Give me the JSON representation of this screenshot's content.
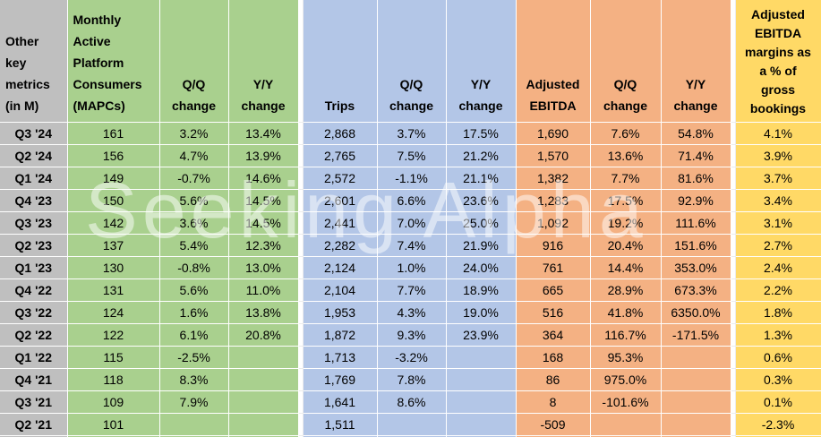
{
  "watermark": "Seeking Alpha",
  "colors": {
    "label_column": "#BFBFBF",
    "mapcs_group": "#A9D08E",
    "trips_group": "#B3C6E7",
    "ebitda_group": "#F4B183",
    "margin_column": "#FFD966",
    "text": "#000000"
  },
  "chart_data": {
    "type": "table",
    "title": "Other key metrics (in M)",
    "headers": {
      "quarter": "Other key metrics (in M)",
      "mapcs": "Monthly Active Platform Consumers (MAPCs)",
      "mapcs_qq": "Q/Q change",
      "mapcs_yy": "Y/Y change",
      "trips": "Trips",
      "trips_qq": "Q/Q change",
      "trips_yy": "Y/Y change",
      "ebitda": "Adjusted EBITDA",
      "ebitda_qq": "Q/Q change",
      "ebitda_yy": "Y/Y change",
      "margin": "Adjusted EBITDA margins as a % of gross bookings"
    },
    "rows": [
      {
        "quarter": "Q3 '24",
        "mapcs": "161",
        "mapcs_qq": "3.2%",
        "mapcs_yy": "13.4%",
        "trips": "2,868",
        "trips_qq": "3.7%",
        "trips_yy": "17.5%",
        "ebitda": "1,690",
        "ebitda_qq": "7.6%",
        "ebitda_yy": "54.8%",
        "margin": "4.1%"
      },
      {
        "quarter": "Q2 '24",
        "mapcs": "156",
        "mapcs_qq": "4.7%",
        "mapcs_yy": "13.9%",
        "trips": "2,765",
        "trips_qq": "7.5%",
        "trips_yy": "21.2%",
        "ebitda": "1,570",
        "ebitda_qq": "13.6%",
        "ebitda_yy": "71.4%",
        "margin": "3.9%"
      },
      {
        "quarter": "Q1 '24",
        "mapcs": "149",
        "mapcs_qq": "-0.7%",
        "mapcs_yy": "14.6%",
        "trips": "2,572",
        "trips_qq": "-1.1%",
        "trips_yy": "21.1%",
        "ebitda": "1,382",
        "ebitda_qq": "7.7%",
        "ebitda_yy": "81.6%",
        "margin": "3.7%"
      },
      {
        "quarter": "Q4 '23",
        "mapcs": "150",
        "mapcs_qq": "5.6%",
        "mapcs_yy": "14.5%",
        "trips": "2,601",
        "trips_qq": "6.6%",
        "trips_yy": "23.6%",
        "ebitda": "1,283",
        "ebitda_qq": "17.5%",
        "ebitda_yy": "92.9%",
        "margin": "3.4%"
      },
      {
        "quarter": "Q3 '23",
        "mapcs": "142",
        "mapcs_qq": "3.6%",
        "mapcs_yy": "14.5%",
        "trips": "2,441",
        "trips_qq": "7.0%",
        "trips_yy": "25.0%",
        "ebitda": "1,092",
        "ebitda_qq": "19.2%",
        "ebitda_yy": "111.6%",
        "margin": "3.1%"
      },
      {
        "quarter": "Q2 '23",
        "mapcs": "137",
        "mapcs_qq": "5.4%",
        "mapcs_yy": "12.3%",
        "trips": "2,282",
        "trips_qq": "7.4%",
        "trips_yy": "21.9%",
        "ebitda": "916",
        "ebitda_qq": "20.4%",
        "ebitda_yy": "151.6%",
        "margin": "2.7%"
      },
      {
        "quarter": "Q1 '23",
        "mapcs": "130",
        "mapcs_qq": "-0.8%",
        "mapcs_yy": "13.0%",
        "trips": "2,124",
        "trips_qq": "1.0%",
        "trips_yy": "24.0%",
        "ebitda": "761",
        "ebitda_qq": "14.4%",
        "ebitda_yy": "353.0%",
        "margin": "2.4%"
      },
      {
        "quarter": "Q4 '22",
        "mapcs": "131",
        "mapcs_qq": "5.6%",
        "mapcs_yy": "11.0%",
        "trips": "2,104",
        "trips_qq": "7.7%",
        "trips_yy": "18.9%",
        "ebitda": "665",
        "ebitda_qq": "28.9%",
        "ebitda_yy": "673.3%",
        "margin": "2.2%"
      },
      {
        "quarter": "Q3 '22",
        "mapcs": "124",
        "mapcs_qq": "1.6%",
        "mapcs_yy": "13.8%",
        "trips": "1,953",
        "trips_qq": "4.3%",
        "trips_yy": "19.0%",
        "ebitda": "516",
        "ebitda_qq": "41.8%",
        "ebitda_yy": "6350.0%",
        "margin": "1.8%"
      },
      {
        "quarter": "Q2 '22",
        "mapcs": "122",
        "mapcs_qq": "6.1%",
        "mapcs_yy": "20.8%",
        "trips": "1,872",
        "trips_qq": "9.3%",
        "trips_yy": "23.9%",
        "ebitda": "364",
        "ebitda_qq": "116.7%",
        "ebitda_yy": "-171.5%",
        "margin": "1.3%"
      },
      {
        "quarter": "Q1 '22",
        "mapcs": "115",
        "mapcs_qq": "-2.5%",
        "mapcs_yy": "",
        "trips": "1,713",
        "trips_qq": "-3.2%",
        "trips_yy": "",
        "ebitda": "168",
        "ebitda_qq": "95.3%",
        "ebitda_yy": "",
        "margin": "0.6%"
      },
      {
        "quarter": "Q4 '21",
        "mapcs": "118",
        "mapcs_qq": "8.3%",
        "mapcs_yy": "",
        "trips": "1,769",
        "trips_qq": "7.8%",
        "trips_yy": "",
        "ebitda": "86",
        "ebitda_qq": "975.0%",
        "ebitda_yy": "",
        "margin": "0.3%"
      },
      {
        "quarter": "Q3 '21",
        "mapcs": "109",
        "mapcs_qq": "7.9%",
        "mapcs_yy": "",
        "trips": "1,641",
        "trips_qq": "8.6%",
        "trips_yy": "",
        "ebitda": "8",
        "ebitda_qq": "-101.6%",
        "ebitda_yy": "",
        "margin": "0.1%"
      },
      {
        "quarter": "Q2 '21",
        "mapcs": "101",
        "mapcs_qq": "",
        "mapcs_yy": "",
        "trips": "1,511",
        "trips_qq": "",
        "trips_yy": "",
        "ebitda": "-509",
        "ebitda_qq": "",
        "ebitda_yy": "",
        "margin": "-2.3%"
      }
    ]
  }
}
